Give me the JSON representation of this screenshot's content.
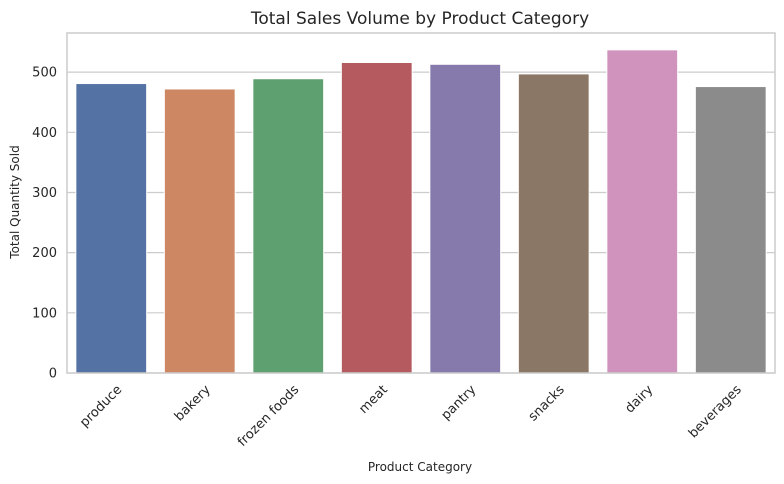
{
  "chart_data": {
    "type": "bar",
    "title": "Total Sales Volume by Product Category",
    "xlabel": "Product Category",
    "ylabel": "Total Quantity Sold",
    "categories": [
      "produce",
      "bakery",
      "frozen foods",
      "meat",
      "pantry",
      "snacks",
      "dairy",
      "beverages"
    ],
    "values": [
      481,
      472,
      489,
      516,
      513,
      497,
      537,
      476
    ],
    "colors": [
      "#5572a5",
      "#cd8863",
      "#5ea06f",
      "#b55a5f",
      "#8679ac",
      "#8b7765",
      "#d093be",
      "#8b8b8b"
    ],
    "yticks": [
      0,
      100,
      200,
      300,
      400,
      500
    ],
    "ylim": [
      0,
      565
    ],
    "grid": "horizontal"
  }
}
